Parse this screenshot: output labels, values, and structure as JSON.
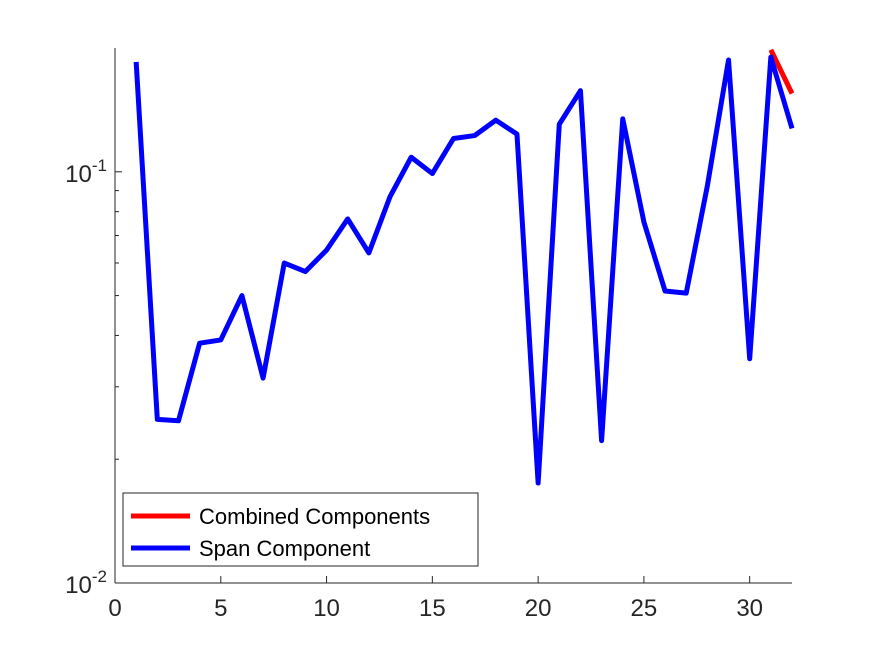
{
  "chart_data": {
    "type": "line",
    "title": "",
    "xlabel": "",
    "ylabel": "",
    "x_scale": "linear",
    "y_scale": "log",
    "xlim": [
      0,
      32
    ],
    "ylim": [
      0.01,
      0.2
    ],
    "x_ticks": [
      0,
      5,
      10,
      15,
      20,
      25,
      30
    ],
    "x_tick_labels": [
      "0",
      "5",
      "10",
      "15",
      "20",
      "25",
      "30"
    ],
    "y_ticks": [
      0.01,
      0.1
    ],
    "y_tick_labels": [
      {
        "base": "10",
        "exp": "-2"
      },
      {
        "base": "10",
        "exp": "-1"
      }
    ],
    "y_minor_ticks": [
      0.02,
      0.03,
      0.04,
      0.05,
      0.06,
      0.07,
      0.08,
      0.09
    ],
    "grid": false,
    "legend_position": "bottom-left",
    "series": [
      {
        "name": "Combined Components",
        "color": "#ff0000",
        "x": [
          31,
          32
        ],
        "y": [
          0.198,
          0.155
        ]
      },
      {
        "name": "Span Component",
        "color": "#0000ff",
        "x": [
          1,
          2,
          3,
          4,
          5,
          6,
          7,
          8,
          9,
          10,
          11,
          12,
          13,
          14,
          15,
          16,
          17,
          18,
          19,
          20,
          21,
          22,
          23,
          24,
          25,
          26,
          27,
          28,
          29,
          30,
          31,
          32
        ],
        "y": [
          0.185,
          0.025,
          0.0248,
          0.0383,
          0.039,
          0.05,
          0.0315,
          0.06,
          0.0572,
          0.0645,
          0.0768,
          0.0635,
          0.087,
          0.1085,
          0.099,
          0.1205,
          0.1225,
          0.1335,
          0.1235,
          0.0175,
          0.1305,
          0.1575,
          0.0222,
          0.1345,
          0.0755,
          0.0513,
          0.0507,
          0.0925,
          0.187,
          0.0351,
          0.19,
          0.1275
        ]
      }
    ]
  }
}
